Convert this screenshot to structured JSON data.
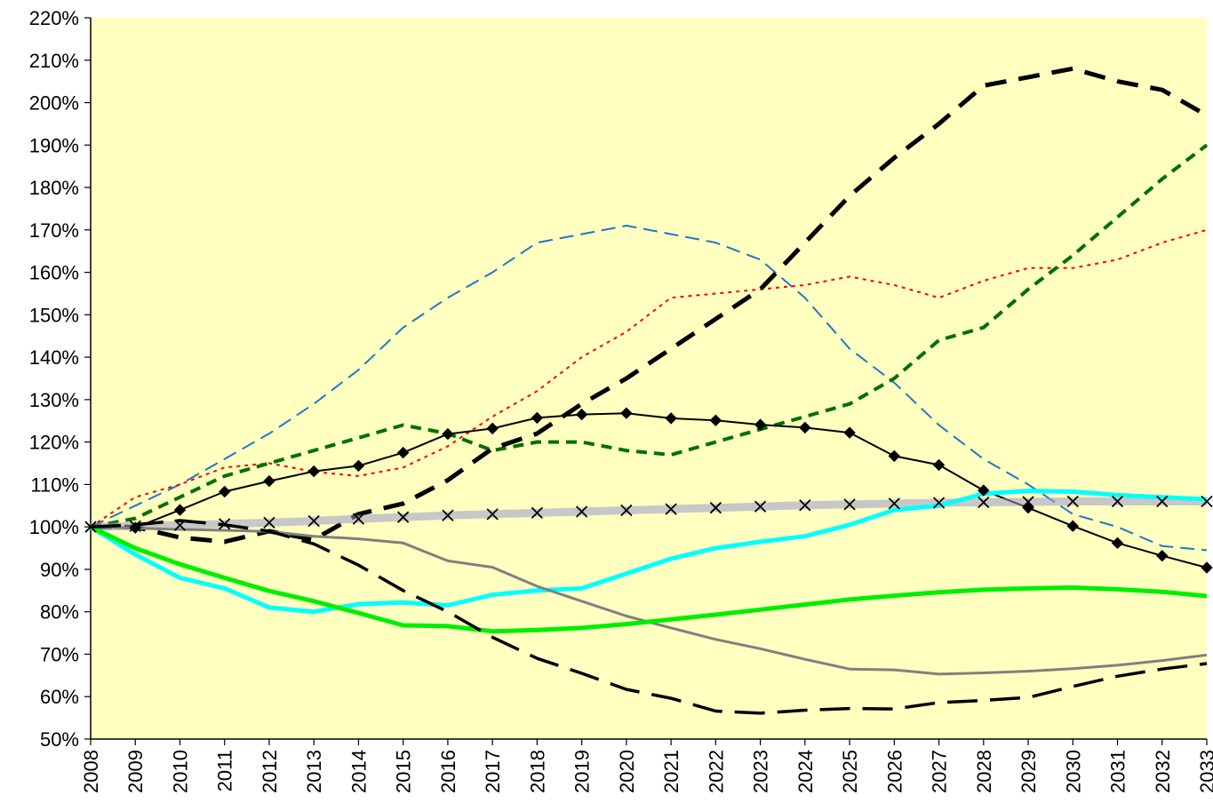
{
  "chart_data": {
    "type": "line",
    "title": "",
    "xlabel": "",
    "ylabel": "",
    "x": [
      "2008",
      "2009",
      "2010",
      "2011",
      "2012",
      "2013",
      "2014",
      "2015",
      "2016",
      "2017",
      "2018",
      "2019",
      "2020",
      "2021",
      "2022",
      "2023",
      "2024",
      "2025",
      "2026",
      "2027",
      "2028",
      "2029",
      "2030",
      "2031",
      "2032",
      "2033"
    ],
    "y_ticks": [
      "50%",
      "60%",
      "70%",
      "80%",
      "90%",
      "100%",
      "110%",
      "120%",
      "130%",
      "140%",
      "150%",
      "160%",
      "170%",
      "180%",
      "190%",
      "200%",
      "210%",
      "220%"
    ],
    "ylim": [
      50,
      220
    ],
    "y_unit": "%",
    "grid": false,
    "legend": "none",
    "plot_background": "#FFFFC0",
    "series": [
      {
        "color": "#1F77C8",
        "style": "dashed-thin",
        "marker": "none",
        "values": [
          100,
          105,
          110,
          116,
          122,
          129,
          137,
          147,
          154,
          160,
          167,
          169,
          171,
          169,
          167,
          163,
          154,
          142,
          134,
          124,
          116,
          110,
          103,
          100,
          95.5,
          94.5
        ]
      },
      {
        "color": "#FF0000",
        "style": "dotted",
        "marker": "none",
        "values": [
          100,
          107,
          110,
          114,
          115,
          113,
          112,
          114,
          119,
          126,
          132,
          140,
          146,
          154,
          155,
          156,
          157,
          159,
          157,
          154,
          158,
          161,
          161,
          163,
          167,
          170
        ]
      },
      {
        "color": "#007000",
        "style": "dashed-medium",
        "marker": "none",
        "values": [
          100,
          102,
          107,
          112,
          115,
          118,
          121,
          124,
          122,
          118,
          120,
          120,
          118,
          117,
          120,
          123,
          126,
          129,
          135,
          144,
          147,
          156,
          164,
          173,
          182,
          190
        ]
      },
      {
        "color": "#000000",
        "style": "dashed-thick",
        "marker": "none",
        "values": [
          100,
          100,
          97.5,
          96.5,
          99,
          97,
          103,
          105.5,
          111,
          118.5,
          122,
          129,
          135,
          142,
          149,
          156,
          167,
          178,
          187,
          195,
          204,
          206,
          208,
          205,
          203,
          197
        ]
      },
      {
        "color": "#000000",
        "style": "solid-thin",
        "marker": "diamond",
        "values": [
          100,
          99.8,
          104,
          108.3,
          110.8,
          113.1,
          114.4,
          117.5,
          121.9,
          123.2,
          125.7,
          126.5,
          126.8,
          125.6,
          125.1,
          124.1,
          123.4,
          122.2,
          116.7,
          114.6,
          108.6,
          104.5,
          100.2,
          96.2,
          93.2,
          90.4
        ]
      },
      {
        "color": "#9999CC",
        "style": "thick-band",
        "marker": "x",
        "values": [
          100,
          100.2,
          100.4,
          100.7,
          101.0,
          101.4,
          101.9,
          102.3,
          102.7,
          103.0,
          103.3,
          103.6,
          103.9,
          104.2,
          104.5,
          104.8,
          105.1,
          105.3,
          105.5,
          105.7,
          105.8,
          105.9,
          106.0,
          106.0,
          106.0,
          106.0
        ]
      },
      {
        "color": "#00FFFF",
        "style": "solid-thick",
        "marker": "none",
        "values": [
          100,
          93.5,
          88,
          85.5,
          81,
          80,
          81.8,
          82.2,
          81.5,
          84,
          85,
          85.5,
          89,
          92.5,
          95,
          96.5,
          97.8,
          100.5,
          104,
          105,
          107.8,
          108.5,
          108.3,
          107.5,
          107,
          106.5
        ]
      },
      {
        "color": "#808080",
        "style": "solid-medium",
        "marker": "none",
        "values": [
          100,
          99.7,
          99.4,
          99.2,
          98.9,
          97.8,
          97.2,
          96.2,
          92,
          90.5,
          86,
          82.5,
          79,
          76.2,
          73.5,
          71.3,
          68.8,
          66.5,
          66.3,
          65.3,
          65.6,
          66,
          66.6,
          67.4,
          68.5,
          69.8
        ]
      },
      {
        "color": "#00EE00",
        "style": "solid-thick",
        "marker": "none",
        "values": [
          100,
          95,
          91.2,
          88,
          84.9,
          82.5,
          79.7,
          76.8,
          76.6,
          75.4,
          75.7,
          76.2,
          77.1,
          78.2,
          79.3,
          80.5,
          81.7,
          82.9,
          83.8,
          84.6,
          85.2,
          85.5,
          85.7,
          85.3,
          84.7,
          83.7
        ]
      },
      {
        "color": "#000000",
        "style": "long-dash",
        "marker": "none",
        "values": [
          100,
          100.5,
          101.5,
          100.5,
          99,
          96,
          91,
          85,
          80,
          74,
          69,
          65.5,
          61.7,
          59.6,
          56.6,
          56.1,
          56.8,
          57.2,
          57.1,
          58.6,
          59.1,
          59.8,
          62.4,
          64.8,
          66.5,
          67.8
        ]
      }
    ]
  }
}
